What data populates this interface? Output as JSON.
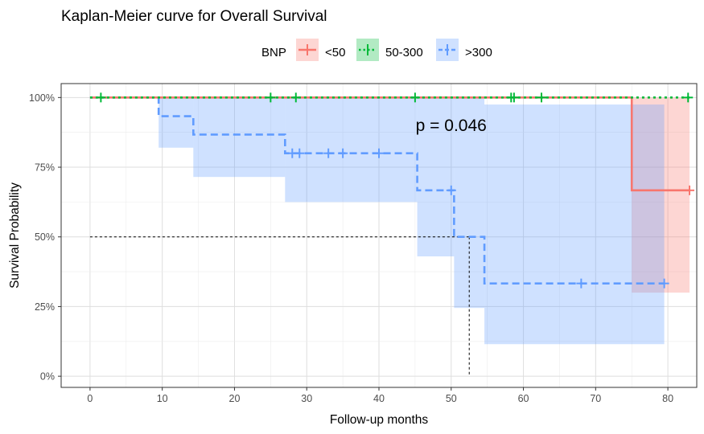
{
  "chart_data": {
    "type": "line",
    "subtype": "kaplan-meier",
    "title": "Kaplan-Meier curve for Overall Survival",
    "xlabel": "Follow-up months",
    "ylabel": "Survival Probability",
    "xlim": [
      -4,
      84
    ],
    "ylim": [
      -0.04,
      1.05
    ],
    "x_ticks": [
      0,
      10,
      20,
      30,
      40,
      50,
      60,
      70,
      80
    ],
    "y_ticks": [
      {
        "value": 0,
        "label": "0%"
      },
      {
        "value": 0.25,
        "label": "25%"
      },
      {
        "value": 0.5,
        "label": "50%"
      },
      {
        "value": 0.75,
        "label": "75%"
      },
      {
        "value": 1.0,
        "label": "100%"
      }
    ],
    "grid": true,
    "legend": {
      "title": "BNP",
      "placement": "top"
    },
    "annotation": "p = 0.046",
    "annotation_at": [
      50,
      0.9
    ],
    "median_line": {
      "x": 52.5,
      "y": 0.5
    },
    "series": [
      {
        "name": "<50",
        "color": "#F8766D",
        "fill": "#F8766D",
        "dash": "solid",
        "steps": [
          [
            0,
            1.0
          ],
          [
            75,
            0.667
          ],
          [
            83,
            0.667
          ]
        ],
        "ci": [
          [
            0,
            1.0,
            1.0
          ],
          [
            75,
            0.3,
            1.0
          ],
          [
            83,
            0.3,
            1.0
          ]
        ],
        "censored": [
          [
            83,
            0.667
          ]
        ]
      },
      {
        "name": "50-300",
        "color": "#00BA38",
        "fill": "#00BA38",
        "dash": "dotted",
        "steps": [
          [
            0,
            1.0
          ],
          [
            83,
            1.0
          ]
        ],
        "ci": [],
        "censored": [
          [
            1.5,
            1.0
          ],
          [
            25,
            1.0
          ],
          [
            28.5,
            1.0
          ],
          [
            45,
            1.0
          ],
          [
            58.3,
            1.0
          ],
          [
            58.7,
            1.0
          ],
          [
            62.5,
            1.0
          ],
          [
            82.8,
            1.0
          ]
        ]
      },
      {
        "name": ">300",
        "color": "#619CFF",
        "fill": "#619CFF",
        "dash": "dashed",
        "steps": [
          [
            0,
            1.0
          ],
          [
            9.5,
            0.933
          ],
          [
            14.3,
            0.867
          ],
          [
            27,
            0.8
          ],
          [
            45.3,
            0.667
          ],
          [
            50.4,
            0.5
          ],
          [
            54.6,
            0.333
          ],
          [
            79.5,
            0.333
          ]
        ],
        "ci": [
          [
            0,
            1.0,
            1.0
          ],
          [
            9.5,
            0.82,
            1.0
          ],
          [
            14.3,
            0.715,
            1.0
          ],
          [
            27,
            0.625,
            1.0
          ],
          [
            45.3,
            0.43,
            1.0
          ],
          [
            50.4,
            0.245,
            1.0
          ],
          [
            54.6,
            0.115,
            0.975
          ],
          [
            79.5,
            0.115,
            0.975
          ]
        ],
        "censored": [
          [
            28,
            0.8
          ],
          [
            29,
            0.8
          ],
          [
            33,
            0.8
          ],
          [
            35,
            0.8
          ],
          [
            40,
            0.8
          ],
          [
            50,
            0.667
          ],
          [
            68,
            0.333
          ],
          [
            79.5,
            0.333
          ]
        ]
      }
    ]
  }
}
